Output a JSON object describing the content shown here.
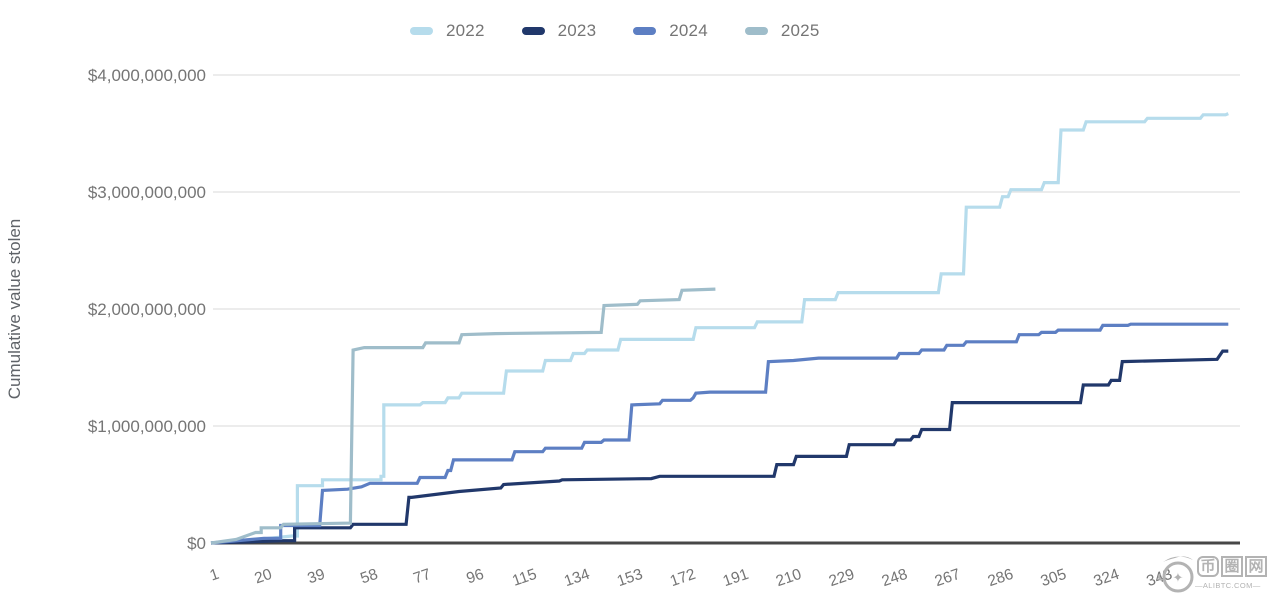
{
  "page": {
    "background": "#ffffff"
  },
  "legend": {
    "items": [
      {
        "label": "2022",
        "color": "#b6dcec"
      },
      {
        "label": "2023",
        "color": "#21386b"
      },
      {
        "label": "2024",
        "color": "#5d7fc3"
      },
      {
        "label": "2025",
        "color": "#9fbdca"
      }
    ]
  },
  "y_axis": {
    "title": "Cumulative value stolen",
    "ticks": [
      {
        "label": "$4,000,000,000",
        "value_billions": 4
      },
      {
        "label": "$3,000,000,000",
        "value_billions": 3
      },
      {
        "label": "$2,000,000,000",
        "value_billions": 2
      },
      {
        "label": "$1,000,000,000",
        "value_billions": 1
      },
      {
        "label": "$0",
        "value_billions": 0
      }
    ],
    "gridline_color": "#e0e0e0",
    "zero_line_color": "#474747",
    "label_color": "#757575",
    "title_color": "#5f6368"
  },
  "x_axis": {
    "tick_days": [
      1,
      20,
      39,
      58,
      77,
      96,
      115,
      134,
      153,
      172,
      191,
      210,
      229,
      248,
      267,
      286,
      305,
      324,
      343
    ],
    "label_color": "#757575"
  },
  "chart_data": {
    "type": "line",
    "title": "",
    "xlabel": "",
    "ylabel": "Cumulative value stolen",
    "x_unit": "day of year",
    "xlim": [
      1,
      366
    ],
    "ylim_billions": [
      0,
      4
    ],
    "grid": "horizontal",
    "legend_position": "top",
    "line_style": "step-cumulative",
    "series": [
      {
        "name": "2022",
        "color": "#b6dcec",
        "points_day_billions": [
          [
            1,
            0
          ],
          [
            18,
            0.03
          ],
          [
            30,
            0.06
          ],
          [
            32,
            0.06
          ],
          [
            32,
            0.49
          ],
          [
            41,
            0.49
          ],
          [
            41,
            0.54
          ],
          [
            62,
            0.54
          ],
          [
            62,
            0.57
          ],
          [
            63,
            0.57
          ],
          [
            63,
            1.18
          ],
          [
            76,
            1.18
          ],
          [
            77,
            1.2
          ],
          [
            85,
            1.2
          ],
          [
            86,
            1.24
          ],
          [
            90,
            1.24
          ],
          [
            91,
            1.28
          ],
          [
            106,
            1.28
          ],
          [
            107,
            1.47
          ],
          [
            120,
            1.47
          ],
          [
            121,
            1.56
          ],
          [
            130,
            1.56
          ],
          [
            131,
            1.62
          ],
          [
            135,
            1.62
          ],
          [
            136,
            1.65
          ],
          [
            147,
            1.65
          ],
          [
            148,
            1.74
          ],
          [
            174,
            1.74
          ],
          [
            175,
            1.84
          ],
          [
            196,
            1.84
          ],
          [
            197,
            1.89
          ],
          [
            213,
            1.89
          ],
          [
            214,
            2.08
          ],
          [
            225,
            2.08
          ],
          [
            226,
            2.14
          ],
          [
            262,
            2.14
          ],
          [
            263,
            2.3
          ],
          [
            271,
            2.3
          ],
          [
            272,
            2.87
          ],
          [
            284,
            2.87
          ],
          [
            285,
            2.96
          ],
          [
            287,
            2.96
          ],
          [
            288,
            3.02
          ],
          [
            299,
            3.02
          ],
          [
            300,
            3.08
          ],
          [
            305,
            3.08
          ],
          [
            306,
            3.53
          ],
          [
            314,
            3.53
          ],
          [
            315,
            3.6
          ],
          [
            336,
            3.6
          ],
          [
            337,
            3.63
          ],
          [
            356,
            3.63
          ],
          [
            357,
            3.66
          ],
          [
            365,
            3.66
          ],
          [
            366,
            3.67
          ]
        ]
      },
      {
        "name": "2023",
        "color": "#21386b",
        "points_day_billions": [
          [
            1,
            0
          ],
          [
            27,
            0.02
          ],
          [
            31,
            0.02
          ],
          [
            31,
            0.13
          ],
          [
            51,
            0.13
          ],
          [
            52,
            0.16
          ],
          [
            71,
            0.16
          ],
          [
            72,
            0.39
          ],
          [
            73,
            0.39
          ],
          [
            90,
            0.44
          ],
          [
            105,
            0.47
          ],
          [
            106,
            0.5
          ],
          [
            126,
            0.53
          ],
          [
            127,
            0.54
          ],
          [
            159,
            0.55
          ],
          [
            162,
            0.57
          ],
          [
            203,
            0.57
          ],
          [
            204,
            0.67
          ],
          [
            210,
            0.67
          ],
          [
            211,
            0.74
          ],
          [
            229,
            0.74
          ],
          [
            230,
            0.84
          ],
          [
            246,
            0.84
          ],
          [
            247,
            0.88
          ],
          [
            252,
            0.88
          ],
          [
            253,
            0.91
          ],
          [
            255,
            0.91
          ],
          [
            256,
            0.97
          ],
          [
            266,
            0.97
          ],
          [
            267,
            1.2
          ],
          [
            313,
            1.2
          ],
          [
            314,
            1.35
          ],
          [
            323,
            1.35
          ],
          [
            324,
            1.39
          ],
          [
            327,
            1.39
          ],
          [
            328,
            1.55
          ],
          [
            362,
            1.57
          ],
          [
            364,
            1.64
          ],
          [
            366,
            1.64
          ]
        ]
      },
      {
        "name": "2024",
        "color": "#5d7fc3",
        "points_day_billions": [
          [
            1,
            0
          ],
          [
            20,
            0.04
          ],
          [
            26,
            0.04
          ],
          [
            26,
            0.15
          ],
          [
            40,
            0.15
          ],
          [
            41,
            0.45
          ],
          [
            50,
            0.46
          ],
          [
            55,
            0.48
          ],
          [
            58,
            0.51
          ],
          [
            75,
            0.51
          ],
          [
            76,
            0.56
          ],
          [
            85,
            0.56
          ],
          [
            86,
            0.62
          ],
          [
            87,
            0.62
          ],
          [
            88,
            0.71
          ],
          [
            109,
            0.71
          ],
          [
            110,
            0.78
          ],
          [
            120,
            0.78
          ],
          [
            121,
            0.81
          ],
          [
            134,
            0.81
          ],
          [
            135,
            0.86
          ],
          [
            141,
            0.86
          ],
          [
            142,
            0.88
          ],
          [
            151,
            0.88
          ],
          [
            152,
            1.18
          ],
          [
            162,
            1.19
          ],
          [
            163,
            1.22
          ],
          [
            173,
            1.22
          ],
          [
            174,
            1.24
          ],
          [
            175,
            1.28
          ],
          [
            180,
            1.29
          ],
          [
            200,
            1.29
          ],
          [
            201,
            1.55
          ],
          [
            210,
            1.56
          ],
          [
            219,
            1.58
          ],
          [
            247,
            1.58
          ],
          [
            248,
            1.62
          ],
          [
            255,
            1.62
          ],
          [
            256,
            1.65
          ],
          [
            264,
            1.65
          ],
          [
            265,
            1.69
          ],
          [
            271,
            1.69
          ],
          [
            272,
            1.72
          ],
          [
            290,
            1.72
          ],
          [
            291,
            1.78
          ],
          [
            298,
            1.78
          ],
          [
            299,
            1.8
          ],
          [
            304,
            1.8
          ],
          [
            305,
            1.82
          ],
          [
            320,
            1.82
          ],
          [
            321,
            1.86
          ],
          [
            330,
            1.86
          ],
          [
            331,
            1.87
          ],
          [
            366,
            1.87
          ]
        ]
      },
      {
        "name": "2025",
        "color": "#9fbdca",
        "points_day_billions": [
          [
            1,
            0
          ],
          [
            10,
            0.03
          ],
          [
            17,
            0.09
          ],
          [
            19,
            0.09
          ],
          [
            19,
            0.13
          ],
          [
            26,
            0.13
          ],
          [
            27,
            0.16
          ],
          [
            51,
            0.17
          ],
          [
            52,
            1.65
          ],
          [
            56,
            1.67
          ],
          [
            77,
            1.67
          ],
          [
            78,
            1.71
          ],
          [
            90,
            1.71
          ],
          [
            91,
            1.78
          ],
          [
            103,
            1.79
          ],
          [
            141,
            1.8
          ],
          [
            142,
            2.03
          ],
          [
            154,
            2.04
          ],
          [
            155,
            2.07
          ],
          [
            169,
            2.08
          ],
          [
            170,
            2.16
          ],
          [
            182,
            2.17
          ]
        ]
      }
    ]
  },
  "watermark": {
    "logo": "coin-star-logo",
    "site_name_chars": [
      "币",
      "圈",
      "网"
    ],
    "site_url_text": "—ALIBTC.COM—"
  }
}
